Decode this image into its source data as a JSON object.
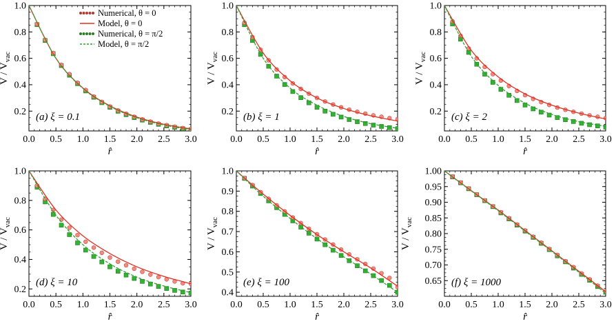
{
  "figure": {
    "xlabel": "r̂",
    "ylabel_main": "V / V",
    "ylabel_sub": "vac",
    "legend": [
      {
        "label": "Numerical, θ = 0",
        "style": "dots",
        "color": "#b23a2e"
      },
      {
        "label": "Model, θ = 0",
        "style": "solid",
        "color": "#e0301e"
      },
      {
        "label": "Numerical, θ = π/2",
        "style": "dots",
        "color": "#2f7d24"
      },
      {
        "label": "Model, θ = π/2",
        "style": "dashed",
        "color": "#2ea12e"
      }
    ],
    "colors": {
      "red_line": "#e0301e",
      "red_marker": "#f08c84",
      "red_marker_edge": "#c8483c",
      "green_line": "#2ea12e",
      "green_marker": "#33b233",
      "green_marker_edge": "#1e7a1e"
    }
  },
  "chart_data": [
    {
      "type": "scatter",
      "label": "(a) ξ = 0.1",
      "xlim": [
        0,
        3
      ],
      "ylim": [
        0.05,
        1.0
      ],
      "xticks": [
        "0.0",
        "0.5",
        "1.0",
        "1.5",
        "2.0",
        "2.5",
        "3.0"
      ],
      "yticks": [
        "0.2",
        "0.4",
        "0.6",
        "0.8",
        "1.0"
      ],
      "ytick_values": [
        0.2,
        0.4,
        0.6,
        0.8,
        1.0
      ],
      "series": [
        {
          "name": "Model, θ = 0",
          "kind": "solid",
          "color": "#e0301e",
          "x": [
            0,
            0.5,
            1.0,
            1.5,
            2.0,
            2.5,
            3.0
          ],
          "y": [
            1.0,
            0.6,
            0.375,
            0.24,
            0.155,
            0.1,
            0.065
          ]
        },
        {
          "name": "Model, θ = π/2",
          "kind": "dashed",
          "color": "#2ea12e",
          "x": [
            0,
            0.5,
            1.0,
            1.5,
            2.0,
            2.5,
            3.0
          ],
          "y": [
            1.0,
            0.6,
            0.372,
            0.236,
            0.15,
            0.095,
            0.06
          ]
        },
        {
          "name": "Numerical, θ = 0",
          "kind": "circles",
          "color": "#f08c84",
          "x": [
            0.15,
            0.3,
            0.45,
            0.6,
            0.75,
            0.9,
            1.05,
            1.2,
            1.35,
            1.5,
            1.65,
            1.8,
            1.95,
            2.1,
            2.25,
            2.4,
            2.55,
            2.7,
            2.85,
            3.0
          ],
          "y": [
            0.86,
            0.74,
            0.64,
            0.55,
            0.48,
            0.415,
            0.36,
            0.31,
            0.27,
            0.235,
            0.205,
            0.18,
            0.157,
            0.138,
            0.121,
            0.106,
            0.093,
            0.082,
            0.072,
            0.064
          ]
        },
        {
          "name": "Numerical, θ = π/2",
          "kind": "squares",
          "color": "#33b233",
          "x": [
            0.15,
            0.3,
            0.45,
            0.6,
            0.75,
            0.9,
            1.05,
            1.2,
            1.35,
            1.5,
            1.65,
            1.8,
            1.95,
            2.1,
            2.25,
            2.4,
            2.55,
            2.7,
            2.85,
            3.0
          ],
          "y": [
            0.855,
            0.735,
            0.635,
            0.545,
            0.472,
            0.408,
            0.353,
            0.305,
            0.264,
            0.229,
            0.199,
            0.173,
            0.151,
            0.132,
            0.115,
            0.1,
            0.088,
            0.077,
            0.067,
            0.059
          ]
        }
      ]
    },
    {
      "type": "scatter",
      "label": "(b) ξ = 1",
      "xlim": [
        0,
        3
      ],
      "ylim": [
        0.05,
        1.0
      ],
      "xticks": [
        "0.0",
        "0.5",
        "1.0",
        "1.5",
        "2.0",
        "2.5",
        "3.0"
      ],
      "yticks": [
        "0.2",
        "0.4",
        "0.6",
        "0.8",
        "1.0"
      ],
      "ytick_values": [
        0.2,
        0.4,
        0.6,
        0.8,
        1.0
      ],
      "series": [
        {
          "name": "Model, θ = 0",
          "kind": "solid",
          "color": "#e0301e",
          "x": [
            0,
            0.5,
            1.0,
            1.5,
            2.0,
            2.5,
            3.0
          ],
          "y": [
            1.0,
            0.64,
            0.43,
            0.3,
            0.22,
            0.165,
            0.125
          ]
        },
        {
          "name": "Model, θ = π/2",
          "kind": "dashed",
          "color": "#2ea12e",
          "x": [
            0,
            0.5,
            1.0,
            1.5,
            2.0,
            2.5,
            3.0
          ],
          "y": [
            1.0,
            0.6,
            0.375,
            0.245,
            0.16,
            0.105,
            0.07
          ]
        },
        {
          "name": "Numerical, θ = 0",
          "kind": "circles",
          "color": "#f08c84",
          "x": [
            0.15,
            0.3,
            0.45,
            0.6,
            0.75,
            0.9,
            1.05,
            1.2,
            1.35,
            1.5,
            1.65,
            1.8,
            1.95,
            2.1,
            2.25,
            2.4,
            2.55,
            2.7,
            2.85,
            3.0
          ],
          "y": [
            0.87,
            0.76,
            0.665,
            0.585,
            0.515,
            0.458,
            0.41,
            0.368,
            0.332,
            0.3,
            0.273,
            0.25,
            0.229,
            0.211,
            0.195,
            0.181,
            0.168,
            0.157,
            0.147,
            0.137
          ]
        },
        {
          "name": "Numerical, θ = π/2",
          "kind": "squares",
          "color": "#33b233",
          "x": [
            0.15,
            0.3,
            0.45,
            0.6,
            0.75,
            0.9,
            1.05,
            1.2,
            1.35,
            1.5,
            1.65,
            1.8,
            1.95,
            2.1,
            2.25,
            2.4,
            2.55,
            2.7,
            2.85,
            3.0
          ],
          "y": [
            0.855,
            0.735,
            0.63,
            0.54,
            0.465,
            0.402,
            0.348,
            0.302,
            0.263,
            0.229,
            0.2,
            0.176,
            0.155,
            0.136,
            0.12,
            0.106,
            0.094,
            0.084,
            0.075,
            0.067
          ]
        }
      ]
    },
    {
      "type": "scatter",
      "label": "(c) ξ = 2",
      "xlim": [
        0,
        3
      ],
      "ylim": [
        0.05,
        1.0
      ],
      "xticks": [
        "0.0",
        "0.5",
        "1.0",
        "1.5",
        "2.0",
        "2.5",
        "3.0"
      ],
      "yticks": [
        "0.2",
        "0.4",
        "0.6",
        "0.8",
        "1.0"
      ],
      "ytick_values": [
        0.2,
        0.4,
        0.6,
        0.8,
        1.0
      ],
      "series": [
        {
          "name": "Model, θ = 0",
          "kind": "solid",
          "color": "#e0301e",
          "x": [
            0,
            0.5,
            1.0,
            1.5,
            2.0,
            2.5,
            3.0
          ],
          "y": [
            1.0,
            0.66,
            0.46,
            0.33,
            0.245,
            0.185,
            0.14
          ]
        },
        {
          "name": "Model, θ = π/2",
          "kind": "dashed",
          "color": "#2ea12e",
          "x": [
            0,
            0.5,
            1.0,
            1.5,
            2.0,
            2.5,
            3.0
          ],
          "y": [
            1.0,
            0.615,
            0.395,
            0.26,
            0.175,
            0.12,
            0.085
          ]
        },
        {
          "name": "Numerical, θ = 0",
          "kind": "circles",
          "color": "#f08c84",
          "x": [
            0.15,
            0.3,
            0.45,
            0.6,
            0.75,
            0.9,
            1.05,
            1.2,
            1.35,
            1.5,
            1.65,
            1.8,
            1.95,
            2.1,
            2.25,
            2.4,
            2.55,
            2.7,
            2.85,
            3.0
          ],
          "y": [
            0.88,
            0.77,
            0.675,
            0.6,
            0.535,
            0.48,
            0.432,
            0.39,
            0.353,
            0.321,
            0.293,
            0.268,
            0.247,
            0.227,
            0.21,
            0.195,
            0.181,
            0.168,
            0.157,
            0.147
          ]
        },
        {
          "name": "Numerical, θ = π/2",
          "kind": "squares",
          "color": "#33b233",
          "x": [
            0.15,
            0.3,
            0.45,
            0.6,
            0.75,
            0.9,
            1.05,
            1.2,
            1.35,
            1.5,
            1.65,
            1.8,
            1.95,
            2.1,
            2.25,
            2.4,
            2.55,
            2.7,
            2.85,
            3.0
          ],
          "y": [
            0.86,
            0.745,
            0.645,
            0.555,
            0.48,
            0.418,
            0.365,
            0.32,
            0.28,
            0.246,
            0.217,
            0.192,
            0.17,
            0.151,
            0.135,
            0.121,
            0.108,
            0.097,
            0.088,
            0.079
          ]
        }
      ]
    },
    {
      "type": "scatter",
      "label": "(d) ξ = 10",
      "xlim": [
        0,
        3
      ],
      "ylim": [
        0.15,
        1.0
      ],
      "xticks": [
        "0.0",
        "0.5",
        "1.0",
        "1.5",
        "2.0",
        "2.5",
        "3.0"
      ],
      "yticks": [
        "0.2",
        "0.4",
        "0.6",
        "0.8",
        "1.0"
      ],
      "ytick_values": [
        0.2,
        0.4,
        0.6,
        0.8,
        1.0
      ],
      "series": [
        {
          "name": "Model, θ = 0",
          "kind": "solid",
          "color": "#e0301e",
          "x": [
            0,
            0.5,
            1.0,
            1.5,
            2.0,
            2.5,
            3.0
          ],
          "y": [
            1.0,
            0.735,
            0.56,
            0.44,
            0.35,
            0.285,
            0.235
          ]
        },
        {
          "name": "Model, θ = π/2",
          "kind": "dashed",
          "color": "#2ea12e",
          "x": [
            0,
            0.5,
            1.0,
            1.5,
            2.0,
            2.5,
            3.0
          ],
          "y": [
            1.0,
            0.7,
            0.5,
            0.37,
            0.28,
            0.22,
            0.175
          ]
        },
        {
          "name": "Numerical, θ = 0",
          "kind": "circles",
          "color": "#f08c84",
          "x": [
            0.15,
            0.3,
            0.45,
            0.6,
            0.75,
            0.9,
            1.05,
            1.2,
            1.35,
            1.5,
            1.65,
            1.8,
            1.95,
            2.1,
            2.25,
            2.4,
            2.55,
            2.7,
            2.85,
            3.0
          ],
          "y": [
            0.9,
            0.81,
            0.735,
            0.67,
            0.615,
            0.565,
            0.52,
            0.48,
            0.445,
            0.413,
            0.385,
            0.36,
            0.337,
            0.316,
            0.297,
            0.28,
            0.265,
            0.251,
            0.238,
            0.235
          ]
        },
        {
          "name": "Numerical, θ = π/2",
          "kind": "squares",
          "color": "#33b233",
          "x": [
            0.15,
            0.3,
            0.45,
            0.6,
            0.75,
            0.9,
            1.05,
            1.2,
            1.35,
            1.5,
            1.65,
            1.8,
            1.95,
            2.1,
            2.25,
            2.4,
            2.55,
            2.7,
            2.85,
            3.0
          ],
          "y": [
            0.89,
            0.79,
            0.705,
            0.632,
            0.568,
            0.512,
            0.463,
            0.42,
            0.383,
            0.35,
            0.32,
            0.294,
            0.271,
            0.251,
            0.233,
            0.217,
            0.203,
            0.19,
            0.179,
            0.172
          ]
        }
      ]
    },
    {
      "type": "scatter",
      "label": "(e) ξ = 100",
      "xlim": [
        0,
        3
      ],
      "ylim": [
        0.38,
        1.0
      ],
      "xticks": [
        "0.0",
        "0.5",
        "1.0",
        "1.5",
        "2.0",
        "2.5",
        "3.0"
      ],
      "yticks": [
        "0.4",
        "0.5",
        "0.6",
        "0.7",
        "0.8",
        "0.9",
        "1.0"
      ],
      "ytick_values": [
        0.4,
        0.5,
        0.6,
        0.7,
        0.8,
        0.9,
        1.0
      ],
      "series": [
        {
          "name": "Model, θ = 0",
          "kind": "solid",
          "color": "#e0301e",
          "x": [
            0,
            0.5,
            1.0,
            1.5,
            2.0,
            2.5,
            3.0
          ],
          "y": [
            1.0,
            0.885,
            0.78,
            0.685,
            0.6,
            0.52,
            0.43
          ]
        },
        {
          "name": "Model, θ = π/2",
          "kind": "dashed",
          "color": "#2ea12e",
          "x": [
            0,
            0.5,
            1.0,
            1.5,
            2.0,
            2.5,
            3.0
          ],
          "y": [
            1.0,
            0.875,
            0.765,
            0.665,
            0.575,
            0.49,
            0.4
          ]
        },
        {
          "name": "Numerical, θ = 0",
          "kind": "circles",
          "color": "#f08c84",
          "x": [
            0.15,
            0.3,
            0.45,
            0.6,
            0.75,
            0.9,
            1.05,
            1.2,
            1.35,
            1.5,
            1.65,
            1.8,
            1.95,
            2.1,
            2.25,
            2.4,
            2.55,
            2.7,
            2.85,
            3.0
          ],
          "y": [
            0.965,
            0.93,
            0.895,
            0.862,
            0.83,
            0.8,
            0.77,
            0.742,
            0.714,
            0.687,
            0.661,
            0.636,
            0.611,
            0.587,
            0.563,
            0.54,
            0.517,
            0.494,
            0.471,
            0.425
          ]
        },
        {
          "name": "Numerical, θ = π/2",
          "kind": "squares",
          "color": "#33b233",
          "x": [
            0.15,
            0.3,
            0.45,
            0.6,
            0.75,
            0.9,
            1.05,
            1.2,
            1.35,
            1.5,
            1.65,
            1.8,
            1.95,
            2.1,
            2.25,
            2.4,
            2.55,
            2.7,
            2.85,
            3.0
          ],
          "y": [
            0.963,
            0.925,
            0.888,
            0.852,
            0.818,
            0.785,
            0.753,
            0.722,
            0.692,
            0.663,
            0.635,
            0.608,
            0.582,
            0.556,
            0.531,
            0.506,
            0.482,
            0.458,
            0.434,
            0.4
          ]
        }
      ]
    },
    {
      "type": "scatter",
      "label": "(f) ξ = 1000",
      "xlim": [
        0,
        3
      ],
      "ylim": [
        0.6,
        1.0
      ],
      "xticks": [
        "0.0",
        "0.5",
        "1.0",
        "1.5",
        "2.0",
        "2.5",
        "3.0"
      ],
      "yticks": [
        "0.65",
        "0.70",
        "0.75",
        "0.80",
        "0.85",
        "0.90",
        "0.95",
        "1.00"
      ],
      "ytick_values": [
        0.65,
        0.7,
        0.75,
        0.8,
        0.85,
        0.9,
        0.95,
        1.0
      ],
      "series": [
        {
          "name": "Model, θ = 0",
          "kind": "solid",
          "color": "#e0301e",
          "x": [
            0,
            0.5,
            1.0,
            1.5,
            2.0,
            2.5,
            3.0
          ],
          "y": [
            1.0,
            0.937,
            0.875,
            0.81,
            0.745,
            0.68,
            0.615
          ]
        },
        {
          "name": "Model, θ = π/2",
          "kind": "dashed",
          "color": "#2ea12e",
          "x": [
            0,
            0.5,
            1.0,
            1.5,
            2.0,
            2.5,
            3.0
          ],
          "y": [
            1.0,
            0.936,
            0.873,
            0.808,
            0.743,
            0.677,
            0.61
          ]
        },
        {
          "name": "Numerical, θ = 0",
          "kind": "circles",
          "color": "#f08c84",
          "x": [
            0.15,
            0.3,
            0.45,
            0.6,
            0.75,
            0.9,
            1.05,
            1.2,
            1.35,
            1.5,
            1.65,
            1.8,
            1.95,
            2.1,
            2.25,
            2.4,
            2.55,
            2.7,
            2.85,
            3.0
          ],
          "y": [
            0.982,
            0.963,
            0.944,
            0.925,
            0.906,
            0.887,
            0.868,
            0.849,
            0.829,
            0.81,
            0.79,
            0.771,
            0.751,
            0.732,
            0.712,
            0.693,
            0.673,
            0.654,
            0.634,
            0.616
          ]
        },
        {
          "name": "Numerical, θ = π/2",
          "kind": "squares",
          "color": "#33b233",
          "x": [
            0.15,
            0.3,
            0.45,
            0.6,
            0.75,
            0.9,
            1.05,
            1.2,
            1.35,
            1.5,
            1.65,
            1.8,
            1.95,
            2.1,
            2.25,
            2.4,
            2.55,
            2.7,
            2.85,
            3.0
          ],
          "y": [
            0.981,
            0.962,
            0.943,
            0.924,
            0.905,
            0.886,
            0.866,
            0.847,
            0.827,
            0.808,
            0.788,
            0.769,
            0.749,
            0.729,
            0.71,
            0.69,
            0.67,
            0.651,
            0.631,
            0.613
          ]
        }
      ]
    }
  ]
}
